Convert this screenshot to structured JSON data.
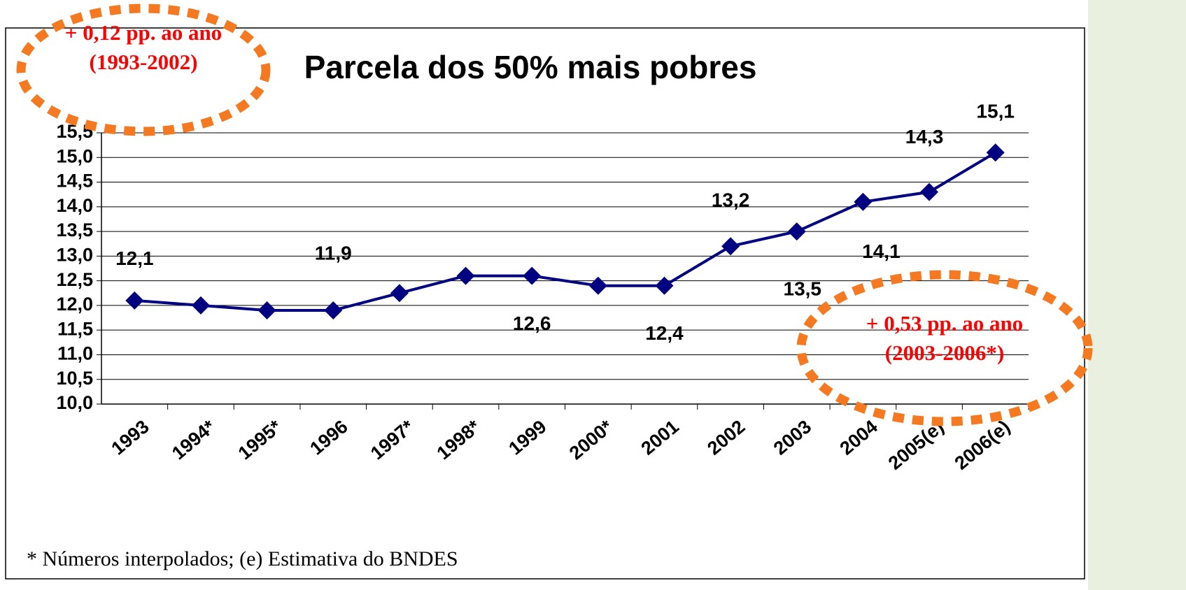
{
  "chart_data": {
    "type": "line",
    "title": "Parcela dos 50% mais pobres",
    "categories": [
      "1993",
      "1994*",
      "1995*",
      "1996",
      "1997*",
      "1998*",
      "1999",
      "2000*",
      "2001",
      "2002",
      "2003",
      "2004",
      "2005(e)",
      "2006(e)"
    ],
    "series": [
      {
        "name": "Parcela dos 50% mais pobres",
        "color": "#000080",
        "values": [
          12.1,
          12.0,
          11.9,
          11.9,
          12.25,
          12.6,
          12.6,
          12.4,
          12.4,
          13.2,
          13.5,
          14.1,
          14.3,
          15.1
        ],
        "value_labels": [
          "12,1",
          null,
          null,
          "11,9",
          null,
          null,
          "12,6",
          null,
          "12,4",
          "13,2",
          "13,5",
          "14,1",
          "14,3",
          "15,1"
        ]
      }
    ],
    "ylim": [
      10.0,
      15.5
    ],
    "yticks": [
      {
        "value": 10.0,
        "label": "10,0"
      },
      {
        "value": 10.5,
        "label": "10,5"
      },
      {
        "value": 11.0,
        "label": "11,0"
      },
      {
        "value": 11.5,
        "label": "11,5"
      },
      {
        "value": 12.0,
        "label": "12,0"
      },
      {
        "value": 12.5,
        "label": "12,5"
      },
      {
        "value": 13.0,
        "label": "13,0"
      },
      {
        "value": 13.5,
        "label": "13,5"
      },
      {
        "value": 14.0,
        "label": "14,0"
      },
      {
        "value": 14.5,
        "label": "14,5"
      },
      {
        "value": 15.0,
        "label": "15,0"
      },
      {
        "value": 15.5,
        "label": "15,5"
      }
    ],
    "grid": true,
    "annotations": [
      {
        "lines": [
          "+ 0,12 pp. ao ano",
          "(1993-2002)"
        ]
      },
      {
        "lines": [
          "+ 0,53 pp. ao ano",
          "(2003-2006*)"
        ]
      }
    ],
    "footnote": "* Números interpolados; (e) Estimativa do BNDES"
  }
}
